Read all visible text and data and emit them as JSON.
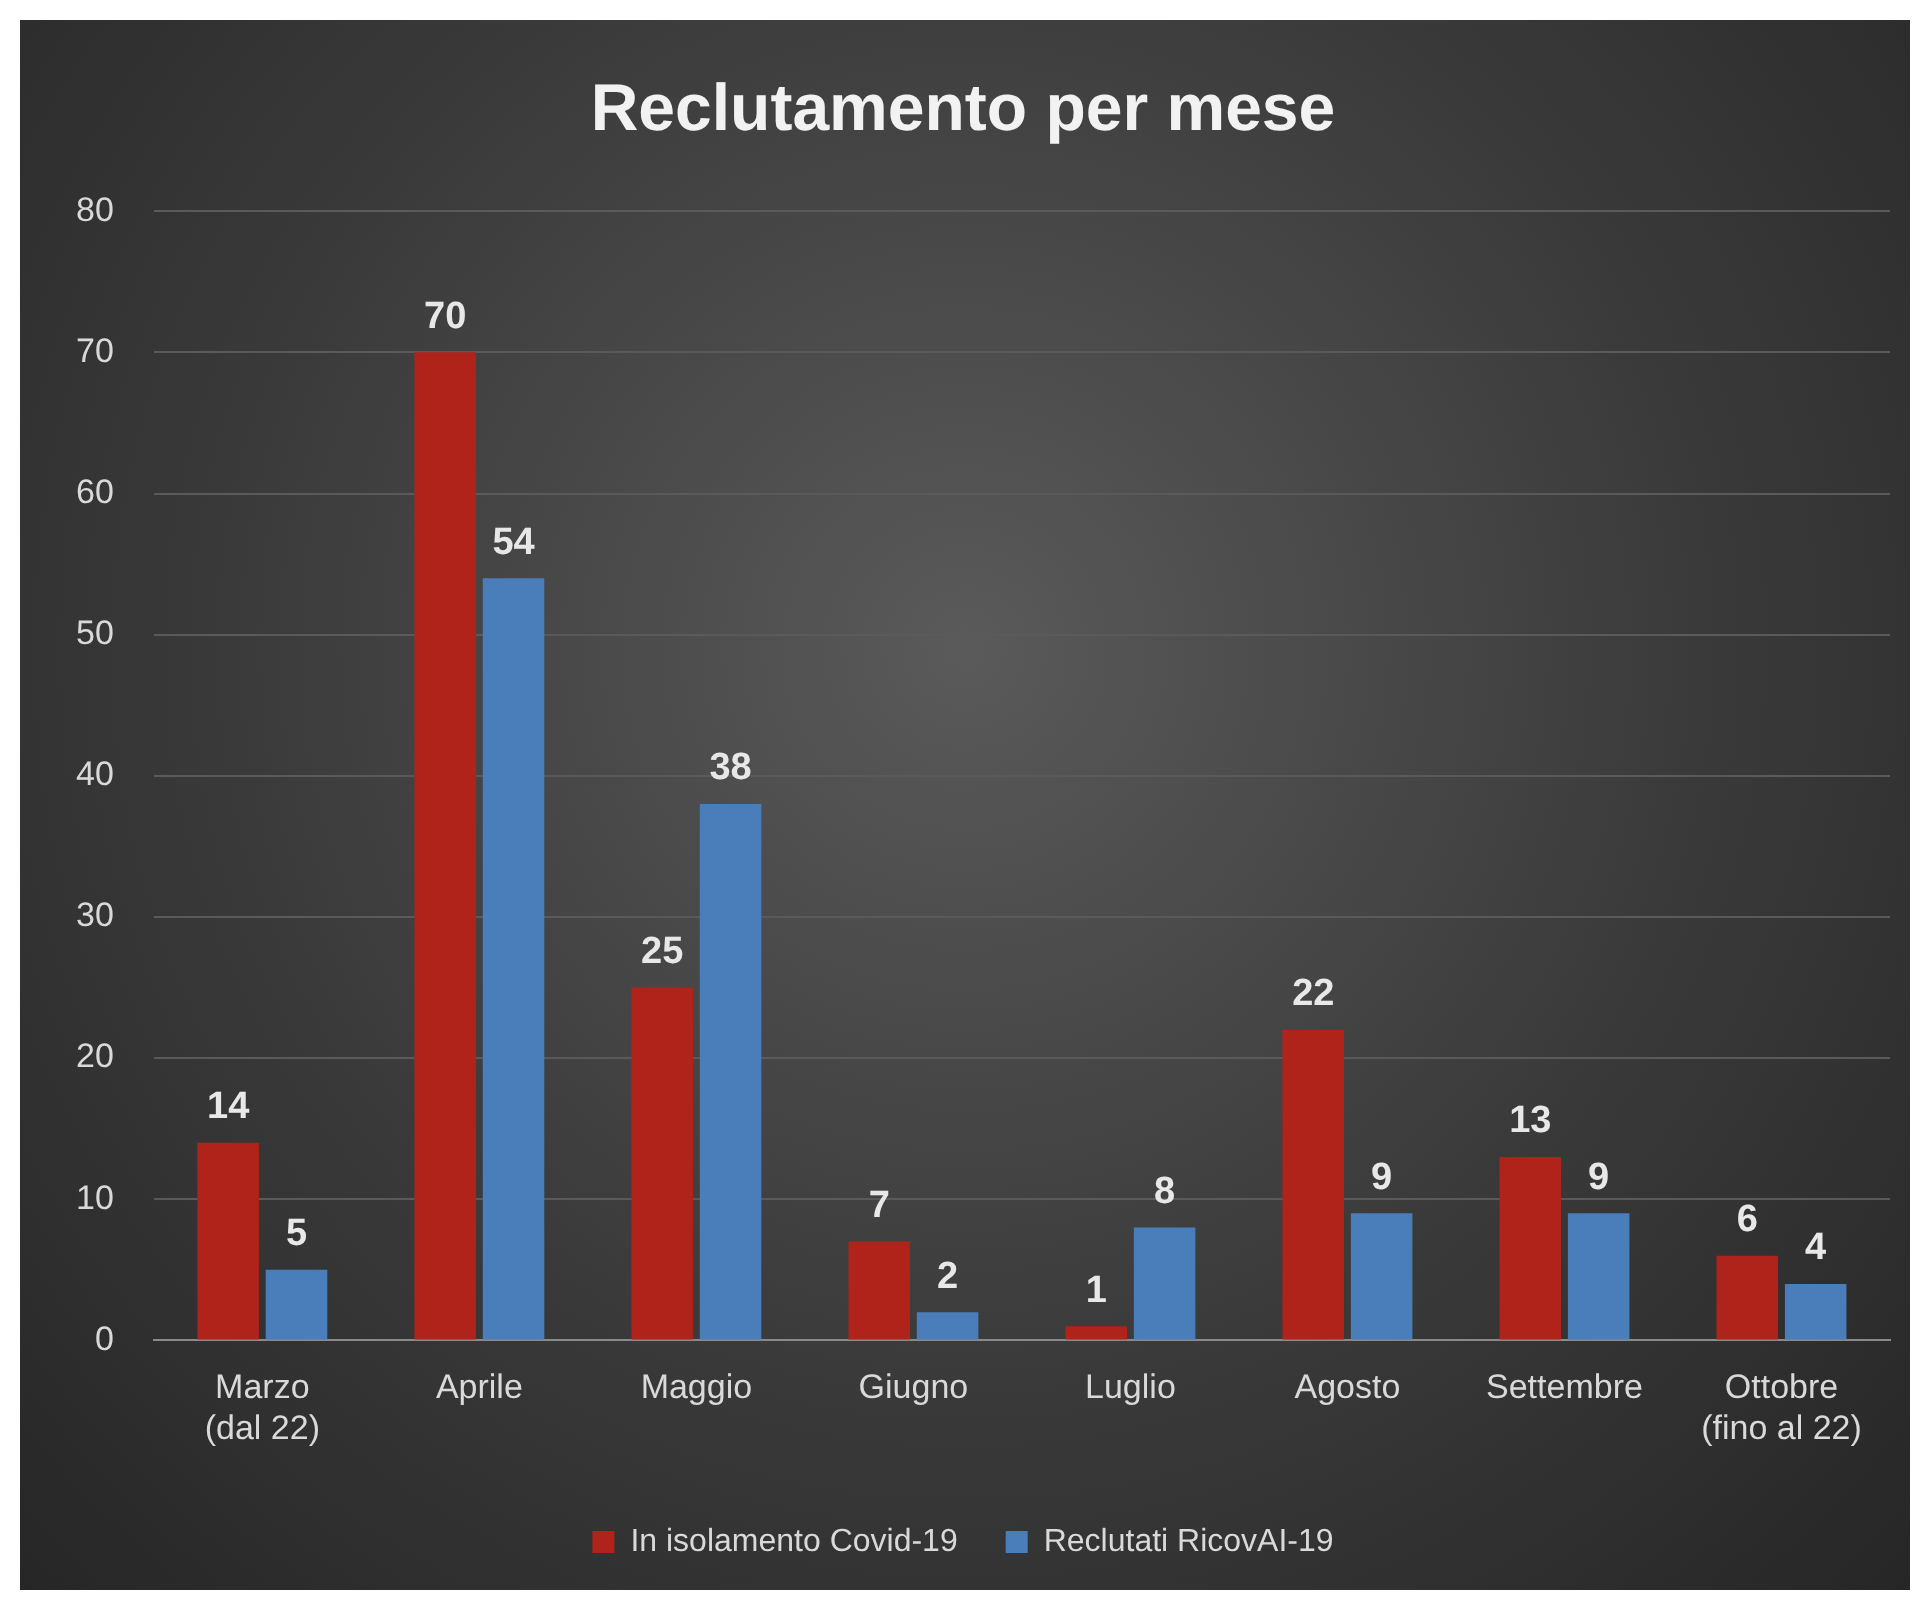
{
  "chart_data": {
    "type": "bar",
    "title": "Reclutamento per mese",
    "categories": [
      "Marzo (dal 22)",
      "Aprile",
      "Maggio",
      "Giugno",
      "Luglio",
      "Agosto",
      "Settembre",
      "Ottobre (fino al 22)"
    ],
    "series": [
      {
        "name": "In isolamento Covid-19",
        "color": "#b0231a",
        "values": [
          14,
          70,
          25,
          7,
          1,
          22,
          13,
          6
        ]
      },
      {
        "name": "Reclutati RicovAI-19",
        "color": "#4a7ebb",
        "values": [
          5,
          54,
          38,
          2,
          8,
          9,
          9,
          4
        ]
      }
    ],
    "ylim": [
      0,
      80
    ],
    "yticks": [
      0,
      10,
      20,
      30,
      40,
      50,
      60,
      70,
      80
    ],
    "grid": "y",
    "legend": "bottom",
    "data_labels": true
  }
}
